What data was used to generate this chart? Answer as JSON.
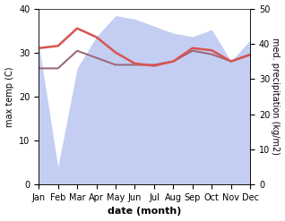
{
  "months": [
    "Jan",
    "Feb",
    "Mar",
    "Apr",
    "May",
    "Jun",
    "Jul",
    "Aug",
    "Sep",
    "Oct",
    "Nov",
    "Dec"
  ],
  "month_indices": [
    0,
    1,
    2,
    3,
    4,
    5,
    6,
    7,
    8,
    9,
    10,
    11
  ],
  "temperature": [
    31,
    31.5,
    35.5,
    33.5,
    30,
    27.5,
    27,
    28,
    31,
    30.5,
    28,
    29.5
  ],
  "precipitation": [
    40,
    5,
    33,
    42,
    48,
    47,
    45,
    43,
    42,
    44,
    35,
    41
  ],
  "precip_line": [
    33,
    33,
    38,
    36,
    34,
    34,
    34,
    35,
    38,
    37,
    35,
    37
  ],
  "temp_color": "#d9534f",
  "precip_line_color": "#9b6b7a",
  "precip_fill_color": "#b0bef0",
  "precip_fill_alpha": 0.75,
  "temp_ylim": [
    0,
    40
  ],
  "precip_ylim": [
    0,
    50
  ],
  "temp_ylabel": "max temp (C)",
  "precip_ylabel": "med. precipitation (kg/m2)",
  "xlabel": "date (month)",
  "background_color": "#ffffff",
  "temp_linewidth": 1.8,
  "precip_linewidth": 1.5,
  "tick_fontsize": 7,
  "label_fontsize": 7,
  "xlabel_fontsize": 8
}
